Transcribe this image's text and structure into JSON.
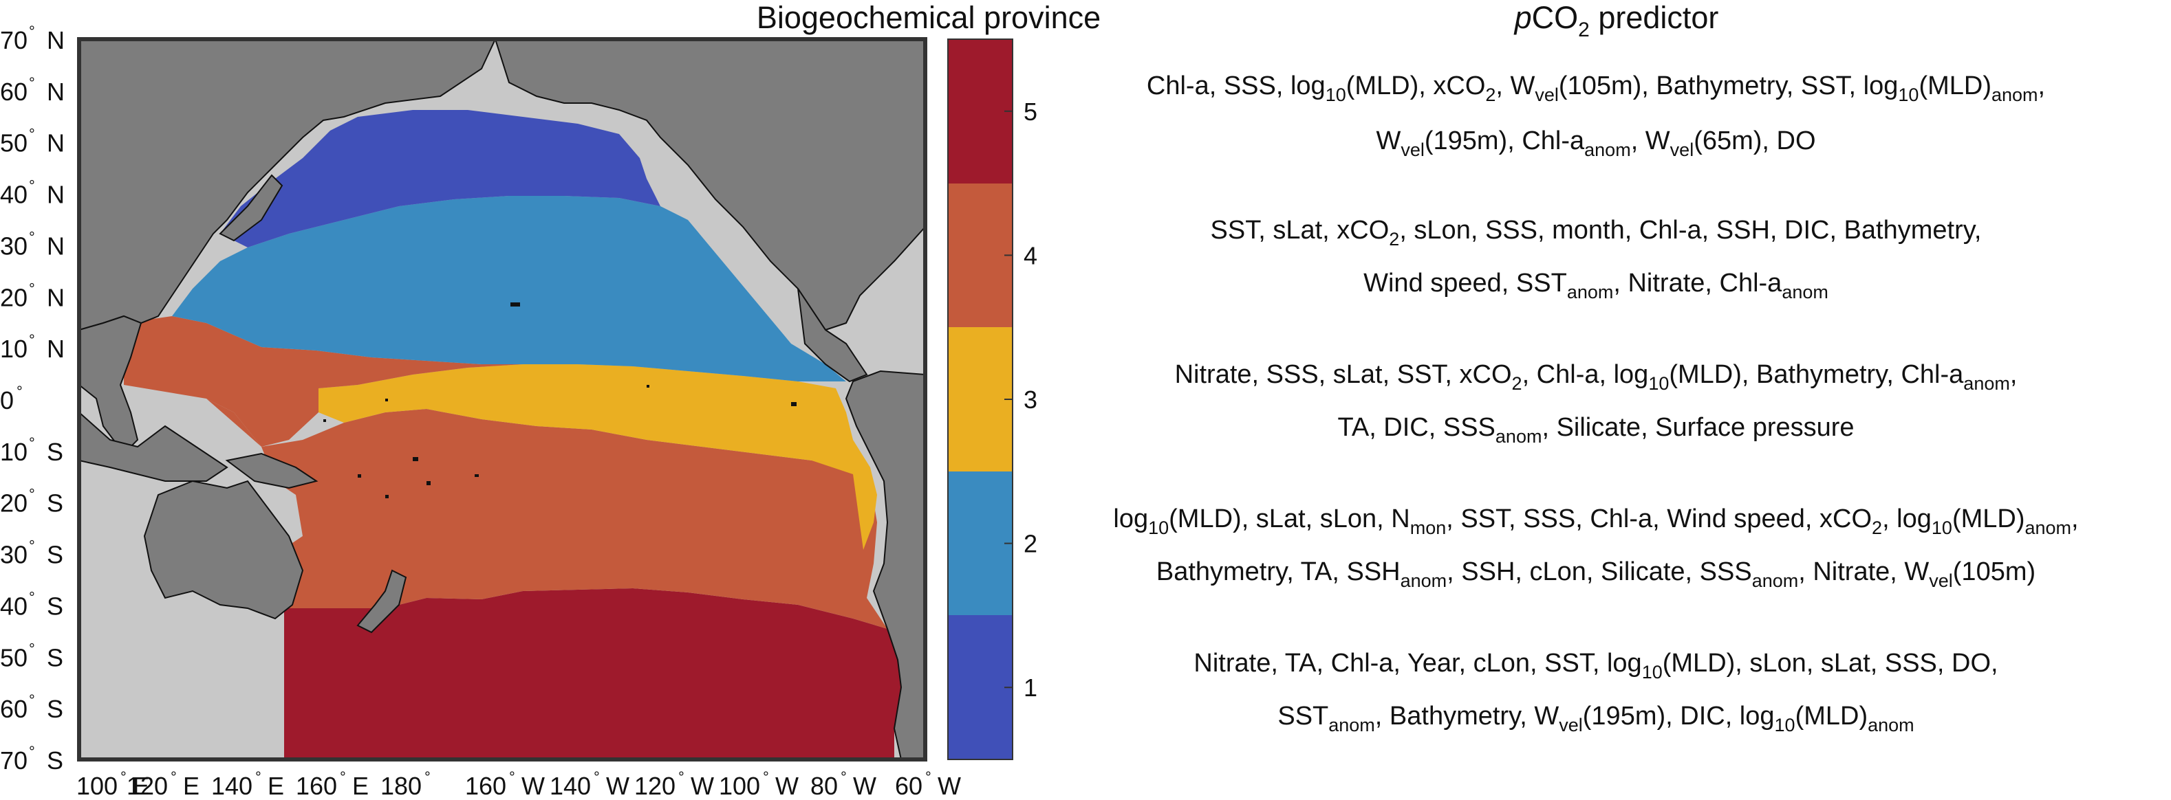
{
  "map": {
    "title": "Biogeochemical province",
    "lat_labels": [
      {
        "deg": "70",
        "hemi": "N",
        "lat": 70
      },
      {
        "deg": "60",
        "hemi": "N",
        "lat": 60
      },
      {
        "deg": "50",
        "hemi": "N",
        "lat": 50
      },
      {
        "deg": "40",
        "hemi": "N",
        "lat": 40
      },
      {
        "deg": "30",
        "hemi": "N",
        "lat": 30
      },
      {
        "deg": "20",
        "hemi": "N",
        "lat": 20
      },
      {
        "deg": "10",
        "hemi": "N",
        "lat": 10
      },
      {
        "deg": "0",
        "hemi": "",
        "lat": 0
      },
      {
        "deg": "10",
        "hemi": "S",
        "lat": -10
      },
      {
        "deg": "20",
        "hemi": "S",
        "lat": -20
      },
      {
        "deg": "30",
        "hemi": "S",
        "lat": -30
      },
      {
        "deg": "40",
        "hemi": "S",
        "lat": -40
      },
      {
        "deg": "50",
        "hemi": "S",
        "lat": -50
      },
      {
        "deg": "60",
        "hemi": "S",
        "lat": -60
      },
      {
        "deg": "70",
        "hemi": "S",
        "lat": -70
      }
    ],
    "lon_labels": [
      {
        "deg": "100",
        "hemi": "E",
        "lon": 100
      },
      {
        "deg": "120",
        "hemi": "E",
        "lon": 120
      },
      {
        "deg": "140",
        "hemi": "E",
        "lon": 140
      },
      {
        "deg": "160",
        "hemi": "E",
        "lon": 160
      },
      {
        "deg": "180",
        "hemi": "",
        "lon": 180
      },
      {
        "deg": "160",
        "hemi": "W",
        "lon": 200
      },
      {
        "deg": "140",
        "hemi": "W",
        "lon": 220
      },
      {
        "deg": "120",
        "hemi": "W",
        "lon": 240
      },
      {
        "deg": "100",
        "hemi": "W",
        "lon": 260
      },
      {
        "deg": "80",
        "hemi": "W",
        "lon": 280
      },
      {
        "deg": "60",
        "hemi": "W",
        "lon": 300
      }
    ],
    "extent": {
      "lon_min": 100,
      "lon_max": 300,
      "lat_min": -70,
      "lat_max": 70
    },
    "colors": {
      "ocean_outside": "#c8c8c8",
      "land": "#7d7d7d",
      "coast": "#111111"
    },
    "provinces": [
      {
        "id": 1,
        "color": "#4050b8"
      },
      {
        "id": 2,
        "color": "#3a8bc0"
      },
      {
        "id": 3,
        "color": "#eaaf22"
      },
      {
        "id": 4,
        "color": "#c45a3c"
      },
      {
        "id": 5,
        "color": "#9e1a2c"
      }
    ]
  },
  "colorbar": {
    "ticks": [
      "1",
      "2",
      "3",
      "4",
      "5"
    ],
    "range": [
      0.5,
      5.5
    ]
  },
  "predictor": {
    "title_italic": "p",
    "title_main": "CO",
    "title_sub": "2",
    "title_rest": " predictor",
    "groups": [
      {
        "lines": [
          [
            [
              "t",
              "Chl-a, SSS, log"
            ],
            [
              "s",
              "10"
            ],
            [
              "t",
              "(MLD), xCO"
            ],
            [
              "s",
              "2"
            ],
            [
              "t",
              ", W"
            ],
            [
              "s",
              "vel"
            ],
            [
              "t",
              "(105m), Bathymetry, SST, log"
            ],
            [
              "s",
              "10"
            ],
            [
              "t",
              "(MLD)"
            ],
            [
              "s",
              "anom"
            ],
            [
              "t",
              ","
            ]
          ],
          [
            [
              "t",
              "W"
            ],
            [
              "s",
              "vel"
            ],
            [
              "t",
              "(195m), Chl-a"
            ],
            [
              "s",
              "anom"
            ],
            [
              "t",
              ", W"
            ],
            [
              "s",
              "vel"
            ],
            [
              "t",
              "(65m), DO"
            ]
          ]
        ]
      },
      {
        "lines": [
          [
            [
              "t",
              "SST, sLat, xCO"
            ],
            [
              "s",
              "2"
            ],
            [
              "t",
              ", sLon, SSS, month, Chl-a, SSH, DIC, Bathymetry,"
            ]
          ],
          [
            [
              "t",
              "Wind speed, SST"
            ],
            [
              "s",
              "anom"
            ],
            [
              "t",
              ", Nitrate, Chl-a"
            ],
            [
              "s",
              "anom"
            ]
          ]
        ]
      },
      {
        "lines": [
          [
            [
              "t",
              "Nitrate, SSS, sLat, SST, xCO"
            ],
            [
              "s",
              "2"
            ],
            [
              "t",
              ", Chl-a, log"
            ],
            [
              "s",
              "10"
            ],
            [
              "t",
              "(MLD), Bathymetry, Chl-a"
            ],
            [
              "s",
              "anom"
            ],
            [
              "t",
              ","
            ]
          ],
          [
            [
              "t",
              "TA, DIC, SSS"
            ],
            [
              "s",
              "anom"
            ],
            [
              "t",
              ", Silicate, Surface pressure"
            ]
          ]
        ]
      },
      {
        "lines": [
          [
            [
              "t",
              "log"
            ],
            [
              "s",
              "10"
            ],
            [
              "t",
              "(MLD), sLat, sLon, N"
            ],
            [
              "s",
              "mon"
            ],
            [
              "t",
              ", SST, SSS, Chl-a, Wind speed, xCO"
            ],
            [
              "s",
              "2"
            ],
            [
              "t",
              ", log"
            ],
            [
              "s",
              "10"
            ],
            [
              "t",
              "(MLD)"
            ],
            [
              "s",
              "anom"
            ],
            [
              "t",
              ","
            ]
          ],
          [
            [
              "t",
              "Bathymetry, TA, SSH"
            ],
            [
              "s",
              "anom"
            ],
            [
              "t",
              ", SSH, cLon, Silicate, SSS"
            ],
            [
              "s",
              "anom"
            ],
            [
              "t",
              ", Nitrate, W"
            ],
            [
              "s",
              "vel"
            ],
            [
              "t",
              "(105m)"
            ]
          ]
        ]
      },
      {
        "lines": [
          [
            [
              "t",
              "Nitrate, TA, Chl-a, Year, cLon, SST, log"
            ],
            [
              "s",
              "10"
            ],
            [
              "t",
              "(MLD), sLon, sLat, SSS, DO,"
            ]
          ],
          [
            [
              "t",
              "SST"
            ],
            [
              "s",
              "anom"
            ],
            [
              "t",
              ", Bathymetry, W"
            ],
            [
              "s",
              "vel"
            ],
            [
              "t",
              "(195m), DIC, log"
            ],
            [
              "s",
              "10"
            ],
            [
              "t",
              "(MLD)"
            ],
            [
              "s",
              "anom"
            ]
          ]
        ]
      }
    ]
  }
}
